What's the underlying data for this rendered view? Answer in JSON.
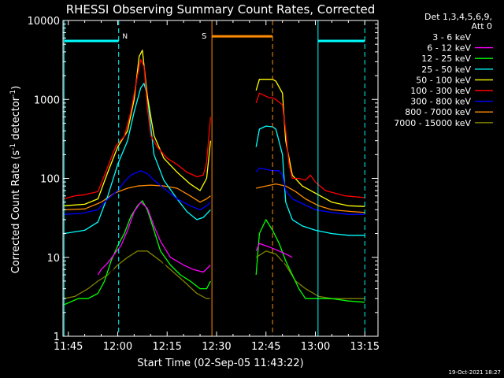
{
  "chart_data": {
    "type": "line",
    "title": "RHESSI Observing Summary Count Rates, Corrected",
    "xlabel": "Start Time (02-Sep-05 11:43:22)",
    "ylabel_parts": [
      "Corrected Count Rate (s",
      "-1",
      " detector",
      "-1",
      ")"
    ],
    "yscale": "log",
    "ylim": [
      1,
      10000
    ],
    "xlim_minutes": [
      -1.6,
      94.0
    ],
    "x_ticks": [
      {
        "m": 0,
        "label": "11:45"
      },
      {
        "m": 15,
        "label": "12:00"
      },
      {
        "m": 30,
        "label": "12:15"
      },
      {
        "m": 45,
        "label": "12:30"
      },
      {
        "m": 60,
        "label": "12:45"
      },
      {
        "m": 75,
        "label": "13:00"
      },
      {
        "m": 90,
        "label": "13:15"
      }
    ],
    "y_ticks": [
      {
        "v": 1,
        "label": "1"
      },
      {
        "v": 10,
        "label": "10"
      },
      {
        "v": 100,
        "label": "100"
      },
      {
        "v": 1000,
        "label": "1000"
      },
      {
        "v": 10000,
        "label": "10000"
      }
    ],
    "legend_title": [
      "Det 1,3,4,5,6,9,",
      "Att 0"
    ],
    "series": [
      {
        "name": "3 - 6 keV",
        "color": "#000000"
      },
      {
        "name": "6 - 12 keV",
        "color": "#ff00ff"
      },
      {
        "name": "12 - 25 keV",
        "color": "#00ff00"
      },
      {
        "name": "25 - 50 keV",
        "color": "#00ffff"
      },
      {
        "name": "50 - 100 keV",
        "color": "#ffff00"
      },
      {
        "name": "100 - 300 keV",
        "color": "#ff0000"
      },
      {
        "name": "300 - 800 keV",
        "color": "#0000ff"
      },
      {
        "name": "800 - 7000 keV",
        "color": "#ff8c00"
      },
      {
        "name": "7000 - 15000 keV",
        "color": "#808000"
      }
    ],
    "night_periods": [
      {
        "label": "N",
        "start": 15.3,
        "end": 75.8,
        "level": 5500,
        "color": "#00ffff"
      }
    ],
    "saa_periods": [
      {
        "label": "S",
        "start": 43.6,
        "end": 62.0,
        "level": 6300,
        "color": "#ff8c00"
      }
    ],
    "extra_markers": [
      {
        "m": -1.3,
        "color": "#00ffff",
        "style": "solid"
      },
      {
        "m": 90.0,
        "color": "#00ffff",
        "style": "dashed"
      }
    ],
    "curves": {
      "100 - 300 keV": [
        [
          -1.4,
          55
        ],
        [
          2,
          60
        ],
        [
          5,
          62
        ],
        [
          9,
          68
        ],
        [
          11,
          110
        ],
        [
          13,
          180
        ],
        [
          14.5,
          260
        ],
        [
          17,
          340
        ],
        [
          19,
          700
        ],
        [
          21,
          2000
        ],
        [
          22,
          3200
        ],
        [
          23,
          2600
        ],
        [
          24,
          800
        ],
        [
          25,
          350
        ],
        [
          27,
          250
        ],
        [
          30,
          180
        ],
        [
          33,
          150
        ],
        [
          36,
          120
        ],
        [
          39,
          105
        ],
        [
          41,
          110
        ],
        [
          42,
          160
        ],
        [
          43.2,
          600
        ],
        null,
        [
          57,
          900
        ],
        [
          58,
          1200
        ],
        [
          59,
          1150
        ],
        [
          60,
          1100
        ],
        [
          61,
          1050
        ],
        [
          62,
          1050
        ],
        [
          63,
          1000
        ],
        [
          65,
          850
        ],
        [
          66,
          400
        ],
        [
          67,
          150
        ],
        [
          68,
          100
        ],
        [
          70,
          100
        ],
        [
          72,
          95
        ],
        [
          73.5,
          110
        ],
        [
          75,
          90
        ],
        [
          78,
          70
        ],
        [
          84,
          60
        ],
        [
          88,
          58
        ],
        [
          90,
          57
        ]
      ],
      "50 - 100 keV": [
        [
          -1.4,
          45
        ],
        [
          5,
          47
        ],
        [
          9,
          55
        ],
        [
          12,
          120
        ],
        [
          15,
          250
        ],
        [
          18,
          400
        ],
        [
          20,
          1000
        ],
        [
          21.5,
          3500
        ],
        [
          22.5,
          4200
        ],
        [
          24,
          1100
        ],
        [
          26,
          350
        ],
        [
          29,
          180
        ],
        [
          33,
          120
        ],
        [
          37,
          85
        ],
        [
          40,
          70
        ],
        [
          42,
          100
        ],
        [
          43.2,
          300
        ],
        null,
        [
          57,
          1300
        ],
        [
          58,
          1800
        ],
        [
          60,
          1800
        ],
        [
          61,
          1800
        ],
        [
          62,
          1800
        ],
        [
          63,
          1700
        ],
        [
          65,
          1200
        ],
        [
          66,
          300
        ],
        [
          68,
          110
        ],
        [
          71,
          80
        ],
        [
          75,
          65
        ],
        [
          80,
          50
        ],
        [
          85,
          45
        ],
        [
          90,
          44
        ]
      ],
      "25 - 50 keV": [
        [
          -1.4,
          20
        ],
        [
          5,
          22
        ],
        [
          9,
          28
        ],
        [
          12,
          60
        ],
        [
          15,
          150
        ],
        [
          18,
          300
        ],
        [
          20,
          700
        ],
        [
          22,
          1400
        ],
        [
          23,
          1600
        ],
        [
          24,
          1100
        ],
        [
          26,
          200
        ],
        [
          29,
          95
        ],
        [
          33,
          55
        ],
        [
          36,
          38
        ],
        [
          39,
          30
        ],
        [
          41,
          32
        ],
        [
          43.2,
          40
        ],
        null,
        [
          57,
          250
        ],
        [
          58,
          420
        ],
        [
          60,
          460
        ],
        [
          62,
          450
        ],
        [
          63,
          420
        ],
        [
          65,
          200
        ],
        [
          66,
          50
        ],
        [
          68,
          30
        ],
        [
          71,
          25
        ],
        [
          75,
          22
        ],
        [
          80,
          20
        ],
        [
          85,
          19
        ],
        [
          90,
          19
        ]
      ],
      "300 - 800 keV": [
        [
          -1.4,
          35
        ],
        [
          4,
          36
        ],
        [
          9,
          40
        ],
        [
          12,
          55
        ],
        [
          15,
          70
        ],
        [
          17,
          90
        ],
        [
          19,
          110
        ],
        [
          22,
          125
        ],
        [
          24,
          115
        ],
        [
          26,
          95
        ],
        [
          29,
          75
        ],
        [
          33,
          55
        ],
        [
          37,
          45
        ],
        [
          40,
          40
        ],
        [
          42,
          45
        ],
        [
          43.2,
          50
        ],
        null,
        [
          57,
          120
        ],
        [
          58,
          135
        ],
        [
          60,
          130
        ],
        [
          62,
          125
        ],
        [
          64,
          125
        ],
        [
          65,
          110
        ],
        [
          66,
          70
        ],
        [
          68,
          55
        ],
        [
          71,
          48
        ],
        [
          75,
          40
        ],
        [
          80,
          37
        ],
        [
          85,
          35
        ],
        [
          90,
          35
        ]
      ],
      "800 - 7000 keV": [
        [
          -1.4,
          40
        ],
        [
          5,
          41
        ],
        [
          10,
          50
        ],
        [
          14,
          65
        ],
        [
          18,
          75
        ],
        [
          21,
          80
        ],
        [
          25,
          82
        ],
        [
          29,
          80
        ],
        [
          33,
          75
        ],
        [
          37,
          60
        ],
        [
          40,
          50
        ],
        [
          42,
          55
        ],
        [
          43.2,
          60
        ],
        null,
        [
          57,
          75
        ],
        [
          60,
          80
        ],
        [
          63,
          85
        ],
        [
          66,
          80
        ],
        [
          69,
          68
        ],
        [
          72,
          55
        ],
        [
          76,
          45
        ],
        [
          80,
          40
        ],
        [
          86,
          38
        ],
        [
          90,
          37
        ]
      ],
      "6 - 12 keV": [
        [
          9,
          6
        ],
        [
          10,
          7
        ],
        [
          12,
          8.5
        ],
        [
          14,
          11
        ],
        [
          16,
          14
        ],
        [
          18,
          22
        ],
        [
          20,
          38
        ],
        [
          22,
          50
        ],
        [
          24,
          42
        ],
        [
          26,
          25
        ],
        [
          28,
          16
        ],
        [
          31,
          10
        ],
        [
          35,
          8
        ],
        [
          38,
          7
        ],
        [
          41,
          6.5
        ],
        [
          43.2,
          8
        ],
        null,
        [
          57,
          12
        ],
        [
          58,
          15
        ],
        [
          60,
          14
        ],
        [
          62,
          13
        ],
        [
          64,
          12
        ],
        [
          66,
          11
        ],
        [
          68,
          10
        ]
      ],
      "12 - 25 keV": [
        [
          -1.4,
          2.5
        ],
        [
          3,
          3
        ],
        [
          6,
          3
        ],
        [
          9,
          3.5
        ],
        [
          11,
          5
        ],
        [
          13,
          9
        ],
        [
          15,
          14
        ],
        [
          17,
          20
        ],
        [
          19,
          33
        ],
        [
          21,
          45
        ],
        [
          22.5,
          52
        ],
        [
          24,
          40
        ],
        [
          26,
          22
        ],
        [
          28,
          12
        ],
        [
          31,
          8
        ],
        [
          34,
          6
        ],
        [
          37,
          5
        ],
        [
          40,
          4
        ],
        [
          42,
          4
        ],
        [
          43.2,
          5
        ],
        null,
        [
          57,
          6
        ],
        [
          58,
          20
        ],
        [
          60,
          30
        ],
        [
          62,
          22
        ],
        [
          64,
          15
        ],
        [
          66,
          9
        ],
        [
          68,
          6
        ],
        [
          70,
          4
        ],
        [
          72,
          3
        ],
        [
          76,
          3
        ],
        [
          80,
          3
        ],
        [
          85,
          2.8
        ],
        [
          90,
          2.7
        ]
      ],
      "3 - 6 keV": [
        [
          11,
          5
        ],
        [
          13,
          6.5
        ],
        [
          15,
          9
        ],
        [
          18,
          20
        ],
        [
          21,
          38
        ],
        [
          23,
          45
        ],
        [
          25,
          25
        ],
        [
          27,
          12
        ],
        [
          30,
          7
        ],
        [
          33,
          5
        ],
        [
          36,
          4
        ],
        [
          39,
          3
        ],
        [
          41,
          2.5
        ],
        [
          43.2,
          3
        ],
        null,
        [
          57,
          20
        ],
        [
          58,
          45
        ],
        [
          60,
          50
        ],
        [
          62,
          30
        ],
        [
          64,
          15
        ],
        [
          65,
          10
        ],
        [
          66,
          6
        ],
        [
          68,
          4
        ],
        [
          70,
          3
        ]
      ],
      "7000 - 15000 keV": [
        [
          -1.4,
          3
        ],
        [
          2,
          3.2
        ],
        [
          6,
          4
        ],
        [
          9,
          5
        ],
        [
          12,
          6
        ],
        [
          15,
          8
        ],
        [
          18,
          10
        ],
        [
          21,
          12
        ],
        [
          24,
          12
        ],
        [
          28,
          9
        ],
        [
          31,
          7
        ],
        [
          35,
          5
        ],
        [
          39,
          3.5
        ],
        [
          42,
          3
        ],
        [
          43.2,
          3
        ],
        null,
        [
          57,
          10
        ],
        [
          60,
          12
        ],
        [
          63,
          11
        ],
        [
          66,
          8
        ],
        [
          69,
          5
        ],
        [
          72,
          4
        ],
        [
          76,
          3.2
        ],
        [
          80,
          3
        ],
        [
          85,
          3
        ],
        [
          90,
          3
        ]
      ]
    }
  },
  "timestamp": "19-Oct-2021 18:27"
}
